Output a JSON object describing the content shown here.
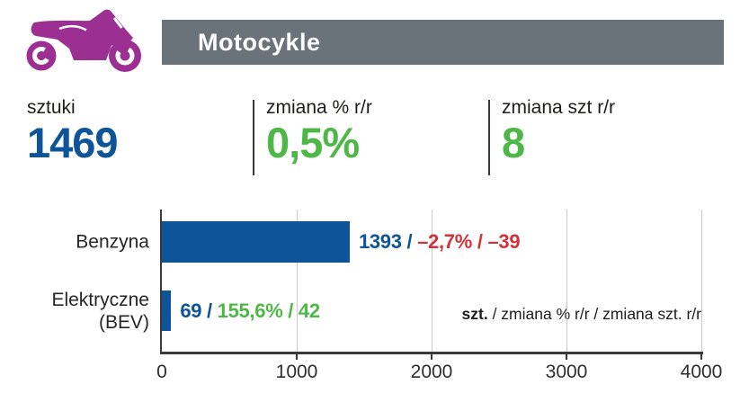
{
  "colors": {
    "brand_purple": "#9b3092",
    "header_bg": "#6a727a",
    "header_text": "#ffffff",
    "blue": "#0e5499",
    "green": "#4db848",
    "red": "#d2333a",
    "axis": "#3a3a3a",
    "gridline": "#cbcbcb"
  },
  "icon": {
    "name": "motorcycle",
    "color": "#9b3092"
  },
  "header": {
    "title": "Motocykle"
  },
  "stats": [
    {
      "label": "sztuki",
      "value": "1469",
      "value_color": "#0e5499"
    },
    {
      "label": "zmiana % r/r",
      "value": "0,5%",
      "value_color": "#4db848"
    },
    {
      "label": "zmiana szt r/r",
      "value": "8",
      "value_color": "#4db848"
    }
  ],
  "chart_data": {
    "type": "bar",
    "orientation": "horizontal",
    "title": "",
    "xlabel": "",
    "ylabel": "",
    "categories": [
      "Benzyna",
      "Elektryczne (BEV)"
    ],
    "values": [
      1393,
      69
    ],
    "xlim": [
      0,
      4000
    ],
    "x_ticks": [
      0,
      1000,
      2000,
      3000,
      4000
    ],
    "grid": true,
    "bar_color": "#0e5499",
    "number_color": "#0e5499",
    "rows": [
      {
        "label_lines": [
          "Benzyna"
        ],
        "value": 1393,
        "value_label": "1393",
        "change_label": "–2,7% / –39",
        "change_color": "#d2333a"
      },
      {
        "label_lines": [
          "Elektryczne",
          "(BEV)"
        ],
        "value": 69,
        "value_label": "69",
        "change_label": "155,6% / 42",
        "change_color": "#4db848"
      }
    ],
    "legend_note": {
      "bold": "szt.",
      "rest": " / zmiana % r/r / zmiana szt. r/r"
    }
  }
}
